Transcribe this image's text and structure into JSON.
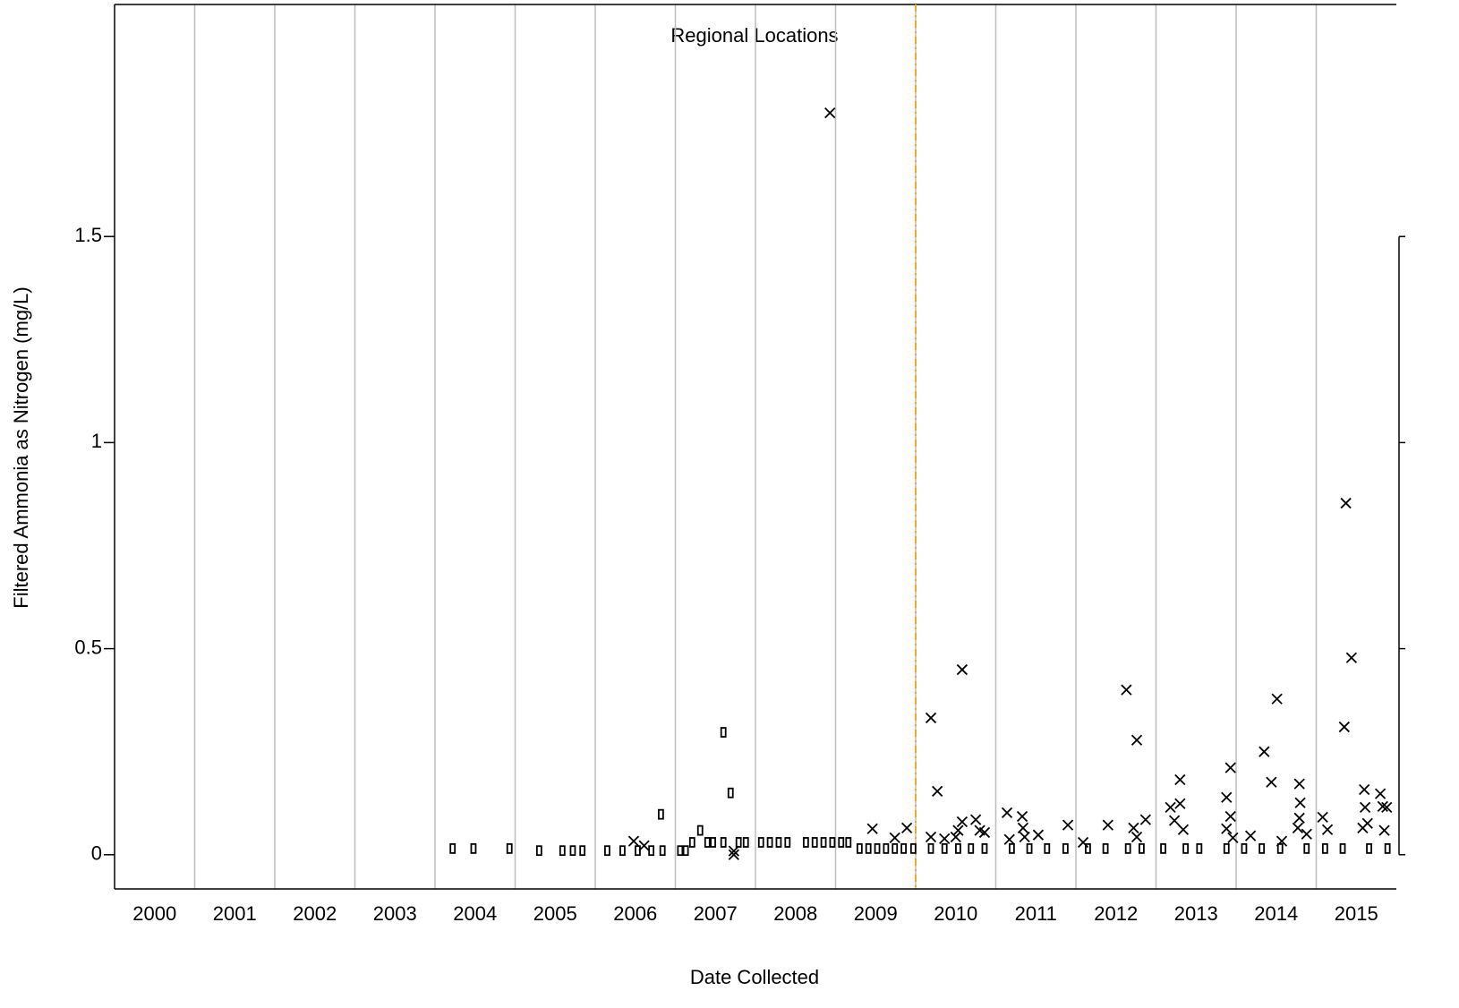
{
  "chart_data": {
    "type": "scatter",
    "title": "Regional Locations",
    "x_label": "Date Collected",
    "y_label": "Filtered Ammonia as Nitrogen (mg/L)",
    "xlim": [
      2000,
      2016
    ],
    "ylim": [
      -0.083,
      2.063
    ],
    "xticks": [
      2000,
      2001,
      2002,
      2003,
      2004,
      2005,
      2006,
      2007,
      2008,
      2009,
      2010,
      2011,
      2012,
      2013,
      2014,
      2015
    ],
    "yticks": [
      0,
      0.5,
      1,
      1.5
    ],
    "grid": true,
    "reference_line_x": 2010,
    "reference_line_color": "#f5a623",
    "series": [
      {
        "marker": "rect",
        "color": "#000000",
        "x": [
          2004.22,
          2004.48,
          2004.93,
          2005.3,
          2005.59,
          2005.72,
          2005.84,
          2006.15,
          2006.34,
          2006.53,
          2006.7,
          2006.84,
          2007.06,
          2007.13,
          2006.82,
          2007.21,
          2007.31,
          2007.4,
          2007.47,
          2007.6,
          2007.6,
          2007.69,
          2007.79,
          2007.88,
          2008.07,
          2008.18,
          2008.29,
          2008.4,
          2008.63,
          2008.74,
          2008.85,
          2008.96,
          2009.07,
          2009.16,
          2009.3,
          2009.41,
          2009.52,
          2009.63,
          2009.74,
          2009.85,
          2009.97,
          2010.19,
          2010.36,
          2010.53,
          2010.69,
          2010.86,
          2011.2,
          2011.42,
          2011.64,
          2011.87,
          2012.15,
          2012.37,
          2012.65,
          2012.82,
          2013.09,
          2013.37,
          2013.54,
          2013.88,
          2014.1,
          2014.32,
          2014.55,
          2014.88,
          2015.11,
          2015.33,
          2015.66,
          2015.89
        ],
        "values": [
          0.015,
          0.015,
          0.015,
          0.01,
          0.01,
          0.01,
          0.01,
          0.01,
          0.01,
          0.01,
          0.01,
          0.01,
          0.01,
          0.01,
          0.098,
          0.03,
          0.059,
          0.03,
          0.03,
          0.297,
          0.03,
          0.15,
          0.03,
          0.03,
          0.03,
          0.03,
          0.03,
          0.03,
          0.03,
          0.03,
          0.03,
          0.03,
          0.03,
          0.03,
          0.015,
          0.015,
          0.015,
          0.015,
          0.015,
          0.015,
          0.015,
          0.015,
          0.015,
          0.015,
          0.015,
          0.015,
          0.015,
          0.015,
          0.015,
          0.015,
          0.015,
          0.015,
          0.015,
          0.015,
          0.015,
          0.015,
          0.015,
          0.015,
          0.015,
          0.015,
          0.015,
          0.015,
          0.015,
          0.015,
          0.015,
          0.015
        ]
      },
      {
        "marker": "x",
        "color": "#000000",
        "x": [
          2006.48,
          2006.61,
          2007.73,
          2007.73,
          2008.93,
          2009.46,
          2009.74,
          2009.89,
          2010.19,
          2010.27,
          2010.19,
          2010.36,
          2010.5,
          2010.58,
          2010.58,
          2010.53,
          2010.75,
          2010.8,
          2010.86,
          2011.14,
          2011.17,
          2011.33,
          2011.34,
          2011.36,
          2011.53,
          2011.9,
          2012.09,
          2012.4,
          2012.63,
          2012.76,
          2012.72,
          2012.76,
          2012.87,
          2013.18,
          2013.23,
          2013.3,
          2013.3,
          2013.34,
          2013.88,
          2013.93,
          2013.93,
          2013.88,
          2013.96,
          2014.18,
          2014.35,
          2014.44,
          2014.51,
          2014.57,
          2014.79,
          2014.8,
          2014.79,
          2014.77,
          2014.88,
          2015.08,
          2015.14,
          2015.37,
          2015.44,
          2015.35,
          2015.6,
          2015.61,
          2015.58,
          2015.64,
          2015.8,
          2015.83,
          2015.88,
          2015.85
        ],
        "values": [
          0.033,
          0.022,
          0.009,
          0.0,
          1.8,
          0.063,
          0.041,
          0.065,
          0.332,
          0.154,
          0.043,
          0.039,
          0.043,
          0.449,
          0.08,
          0.059,
          0.085,
          0.059,
          0.054,
          0.102,
          0.037,
          0.093,
          0.065,
          0.043,
          0.048,
          0.072,
          0.03,
          0.072,
          0.4,
          0.278,
          0.065,
          0.043,
          0.085,
          0.115,
          0.083,
          0.182,
          0.124,
          0.061,
          0.139,
          0.211,
          0.093,
          0.063,
          0.041,
          0.046,
          0.25,
          0.176,
          0.378,
          0.033,
          0.172,
          0.126,
          0.089,
          0.065,
          0.05,
          0.091,
          0.061,
          0.853,
          0.478,
          0.31,
          0.158,
          0.115,
          0.065,
          0.076,
          0.148,
          0.117,
          0.115,
          0.059
        ]
      }
    ]
  }
}
